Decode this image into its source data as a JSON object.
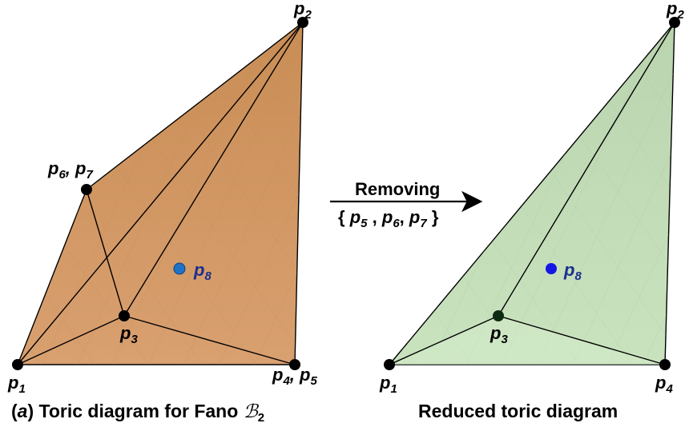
{
  "left_diagram": {
    "points": {
      "p1": "p",
      "p1_sub": "1",
      "p2": "p",
      "p2_sub": "2",
      "p3": "p",
      "p3_sub": "3",
      "p45_a": "p",
      "p45_a_sub": "4",
      "p45_sep": ",",
      "p45_b": "p",
      "p45_b_sub": "5",
      "p67_a": "p",
      "p67_a_sub": "6",
      "p67_sep": ",",
      "p67_b": "p",
      "p67_b_sub": "7",
      "p8": "p",
      "p8_sub": "8"
    },
    "caption_prefix": "(",
    "caption_a": "a",
    "caption_mid": ") Toric diagram for Fano ",
    "caption_math": "ℬ",
    "caption_sub": "2",
    "fill_color": "#cf9760",
    "point_color": "#000000",
    "p8_color": "#1e73c8"
  },
  "arrow": {
    "label_top": "Removing",
    "label_bottom_open": "{",
    "p5": "p",
    "p5_sub": "5",
    "sep1": ",",
    "p6": "p",
    "p6_sub": "6",
    "sep2": ",",
    "p7": "p",
    "p7_sub": "7",
    "label_bottom_close": "}"
  },
  "right_diagram": {
    "points": {
      "p1": "p",
      "p1_sub": "1",
      "p2": "p",
      "p2_sub": "2",
      "p3": "p",
      "p3_sub": "3",
      "p4": "p",
      "p4_sub": "4",
      "p8": "p",
      "p8_sub": "8"
    },
    "caption": "Reduced toric diagram",
    "fill_color": "#c2d9b8",
    "p8_color": "#1515e6"
  }
}
